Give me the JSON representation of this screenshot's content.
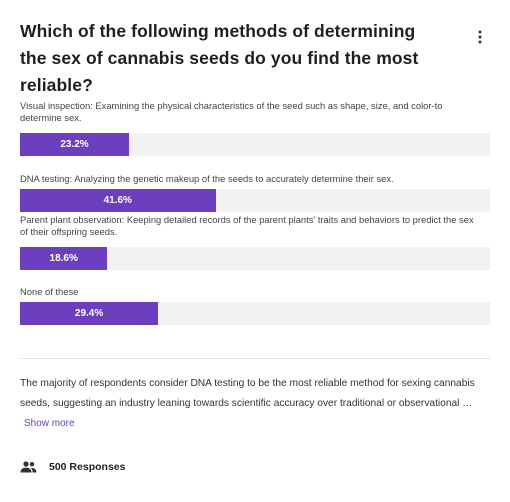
{
  "poll": {
    "question": "Which of the following methods of determining the sex of cannabis seeds do you find the most reliable?",
    "menu_icon": "more-vertical-icon",
    "accent_color": "#6b3fbd",
    "track_color": "#f2f2f2",
    "options": [
      {
        "label": "Visual inspection: Examining the physical characteristics of the seed such as shape, size, and color-to determine sex.",
        "percent_label": "23.2%",
        "percent": 23.2
      },
      {
        "label": "DNA testing: Analyzing the genetic makeup of the seeds to accurately determine their sex.",
        "percent_label": "41.6%",
        "percent": 41.6
      },
      {
        "label": "Parent plant observation: Keeping detailed records of the parent plants' traits and behaviors to predict the sex of their offspring seeds.",
        "percent_label": "18.6%",
        "percent": 18.6
      },
      {
        "label": "None of these",
        "percent_label": "29.4%",
        "percent": 29.4
      }
    ],
    "summary": "The majority of respondents consider DNA testing to be the most reliable method for sexing cannabis seeds, suggesting an industry leaning towards scientific accuracy over traditional or observational …",
    "show_more": "Show more",
    "responses_icon": "people-icon",
    "responses": "500 Responses"
  }
}
